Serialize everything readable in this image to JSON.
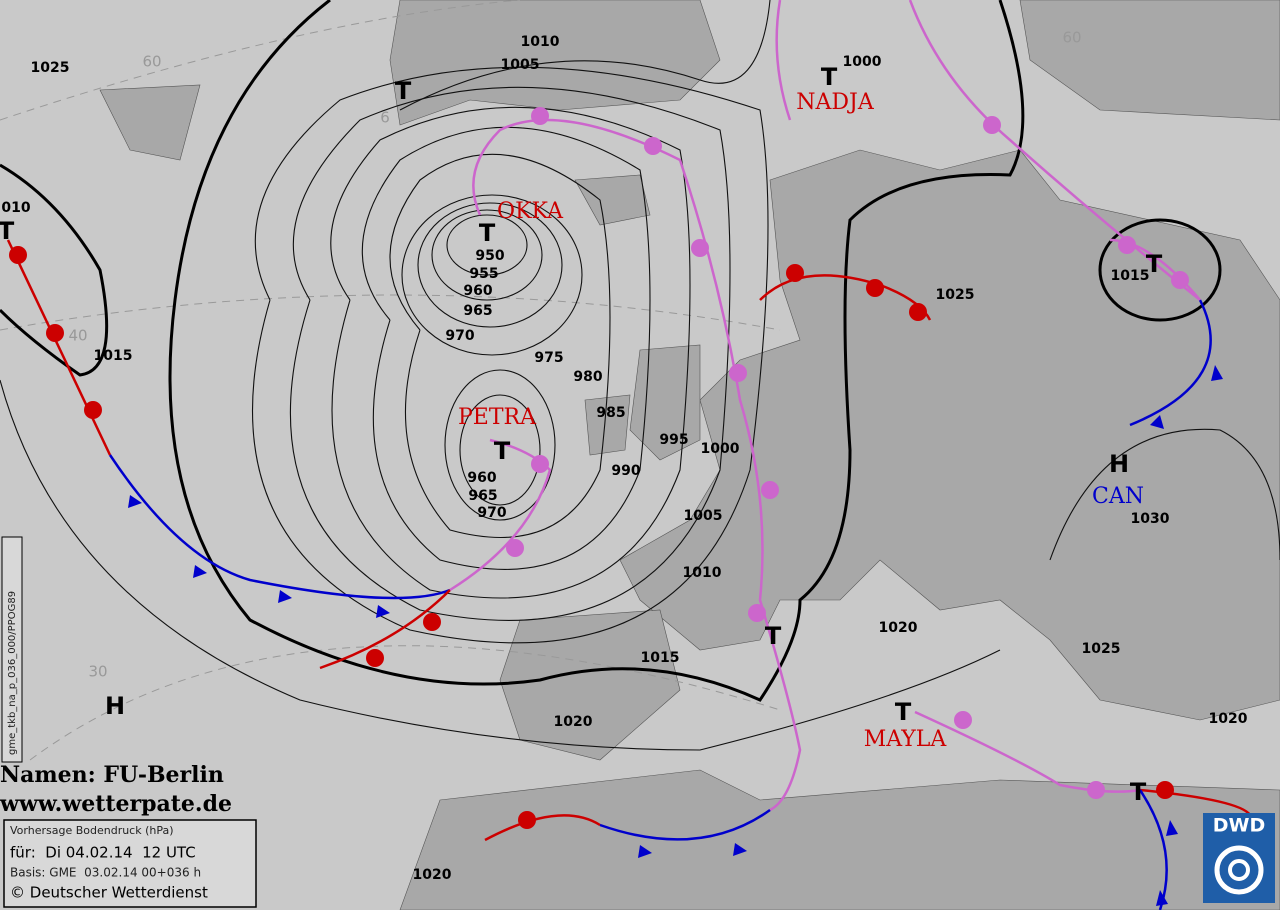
{
  "systems": [
    "T",
    "T",
    "T",
    "T",
    "T",
    "T",
    "T",
    "T",
    "T",
    "H",
    "H"
  ],
  "names": [
    {
      "text": "OKKA",
      "color": "#cc0000"
    },
    {
      "text": "NADJA",
      "color": "#cc0000"
    },
    {
      "text": "PETRA",
      "color": "#cc0000"
    },
    {
      "text": "MAYLA",
      "color": "#cc0000"
    },
    {
      "text": "CAN",
      "color": "#0000cc"
    }
  ],
  "isobar_labels": [
    "1025",
    "1010",
    "1005",
    "1000",
    "010",
    "1015",
    "950",
    "955",
    "960",
    "965",
    "970",
    "975",
    "980",
    "985",
    "995",
    "1000",
    "990",
    "960",
    "965",
    "970",
    "1005",
    "1010",
    "1015",
    "1020",
    "1025",
    "1015",
    "1030",
    "1025",
    "1020",
    "1020",
    "1020"
  ],
  "grid_labels": [
    "60",
    "6",
    "40",
    "30",
    "60"
  ],
  "credits": {
    "names": "Namen: FU-Berlin",
    "url": "www.wetterpate.de"
  },
  "info": {
    "title": "Vorhersage Bodendruck (hPa)",
    "valid": "für:  Di 04.02.14  12 UTC",
    "base": "Basis: GME  03.02.14 00+036 h",
    "copyright": "© Deutscher Wetterdienst"
  },
  "side_code": "gme_tkb_na_p_036_000/PPOG89",
  "logo": "DWD"
}
